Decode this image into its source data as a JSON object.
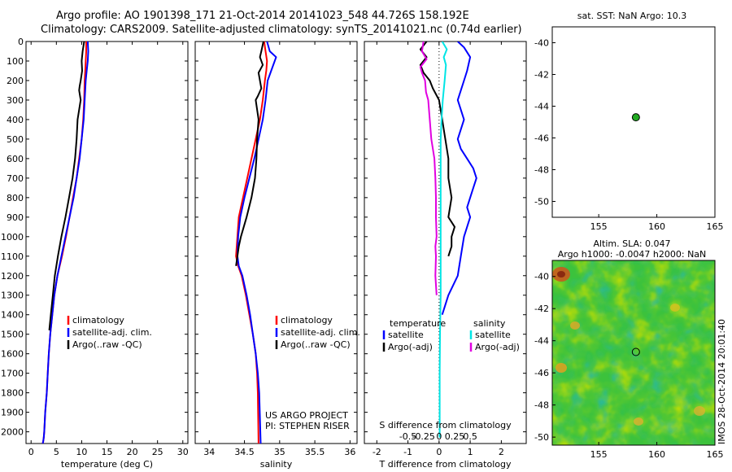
{
  "header": {
    "line1": "Argo profile: AO 1901398_171 21-Oct-2014 20141023_548 44.726S 158.192E",
    "line2": "Climatology: CARS2009. Satellite-adjusted climatology: synTS_20141021.nc (0.74d earlier)"
  },
  "credit": "IMOS 28-Oct-2014 20:01:40",
  "project_note": [
    "US ARGO PROJECT",
    "PI: STEPHEN RISER"
  ],
  "colors": {
    "climatology": "#ff0000",
    "satellite": "#0000ff",
    "argo": "#000000",
    "sat_salinity": "#00e5e5",
    "argo_salinity": "#e100e1",
    "dot": "#22aa22"
  },
  "chart_data": [
    {
      "type": "line",
      "xlabel": "temperature (deg C)",
      "xlim": [
        -1,
        31
      ],
      "xticks": [
        0,
        5,
        10,
        15,
        20,
        25,
        30
      ],
      "ylim": [
        2060,
        0
      ],
      "yticks": [
        0,
        100,
        200,
        300,
        400,
        500,
        600,
        700,
        800,
        900,
        1000,
        1100,
        1200,
        1300,
        1400,
        1500,
        1600,
        1700,
        1800,
        1900,
        2000
      ],
      "legend": [
        "climatology",
        "satellite-adj. clim.",
        "Argo(..raw -QC)"
      ],
      "series": [
        {
          "name": "climatology",
          "color": "#ff0000",
          "x": [
            10.9,
            10.9,
            10.8,
            10.7,
            10.6,
            10.5,
            10.3,
            10.0,
            9.5,
            9.0,
            8.3,
            7.6,
            6.9,
            6.1,
            5.2,
            4.6,
            4.2,
            3.8,
            3.5,
            3.3,
            3.1,
            2.8,
            2.6,
            2.5,
            2.4,
            2.3
          ],
          "y": [
            0,
            50,
            100,
            150,
            200,
            300,
            400,
            500,
            600,
            700,
            800,
            900,
            1000,
            1100,
            1200,
            1300,
            1400,
            1500,
            1600,
            1700,
            1800,
            1900,
            2000,
            2030,
            2050,
            2060
          ]
        },
        {
          "name": "satellite-adj. clim.",
          "color": "#0000ff",
          "x": [
            11.2,
            11.3,
            11.2,
            11.0,
            10.8,
            10.6,
            10.4,
            10.0,
            9.6,
            9.0,
            8.4,
            7.6,
            6.8,
            6.0,
            5.2,
            4.6,
            4.2,
            3.8,
            3.5,
            3.3,
            3.1,
            2.8,
            2.6,
            2.5,
            2.4,
            2.3
          ],
          "y": [
            0,
            50,
            100,
            150,
            200,
            300,
            400,
            500,
            600,
            700,
            800,
            900,
            1000,
            1100,
            1200,
            1300,
            1400,
            1500,
            1600,
            1700,
            1800,
            1900,
            2000,
            2030,
            2050,
            2060
          ]
        },
        {
          "name": "Argo(..raw -QC)",
          "color": "#000000",
          "x": [
            10.5,
            10.2,
            10.0,
            10.1,
            9.8,
            9.6,
            9.5,
            9.8,
            9.2,
            9.0,
            8.7,
            8.2,
            7.5,
            6.8,
            6.0,
            5.3,
            4.7,
            4.3,
            3.9,
            3.6
          ],
          "y": [
            0,
            50,
            100,
            150,
            200,
            230,
            250,
            300,
            400,
            500,
            600,
            700,
            800,
            900,
            1000,
            1100,
            1200,
            1300,
            1400,
            1480
          ]
        }
      ]
    },
    {
      "type": "line",
      "xlabel": "salinity",
      "xlim": [
        33.8,
        36.1
      ],
      "xticks": [
        34,
        34.5,
        35,
        35.5,
        36
      ],
      "ylim": [
        2060,
        0
      ],
      "yticks": [
        0,
        100,
        200,
        300,
        400,
        500,
        600,
        700,
        800,
        900,
        1000,
        1100,
        1200,
        1300,
        1400,
        1500,
        1600,
        1700,
        1800,
        1900,
        2000
      ],
      "legend": [
        "climatology",
        "satellite-adj. clim.",
        "Argo(..raw -QC)"
      ],
      "series": [
        {
          "name": "climatology",
          "color": "#ff0000",
          "x": [
            34.78,
            34.8,
            34.82,
            34.81,
            34.79,
            34.76,
            34.72,
            34.66,
            34.6,
            34.54,
            34.48,
            34.42,
            34.4,
            34.38,
            34.41,
            34.46,
            34.52,
            34.57,
            34.62,
            34.66,
            34.68,
            34.69,
            34.7
          ],
          "y": [
            0,
            50,
            100,
            150,
            200,
            300,
            400,
            500,
            600,
            700,
            800,
            900,
            1000,
            1100,
            1150,
            1200,
            1300,
            1400,
            1500,
            1600,
            1700,
            1800,
            2060
          ]
        },
        {
          "name": "satellite-adj. clim.",
          "color": "#0000ff",
          "x": [
            34.82,
            34.86,
            34.95,
            34.88,
            34.83,
            34.8,
            34.76,
            34.7,
            34.64,
            34.57,
            34.5,
            34.44,
            34.41,
            34.4,
            34.42,
            34.47,
            34.53,
            34.58,
            34.62,
            34.66,
            34.69,
            34.71,
            34.73
          ],
          "y": [
            0,
            50,
            80,
            150,
            200,
            300,
            400,
            500,
            600,
            700,
            800,
            900,
            1000,
            1100,
            1150,
            1200,
            1300,
            1400,
            1500,
            1600,
            1700,
            1800,
            2060
          ]
        },
        {
          "name": "Argo(..raw -QC)",
          "color": "#000000",
          "x": [
            34.77,
            34.74,
            34.72,
            34.76,
            34.7,
            34.72,
            34.74,
            34.69,
            34.66,
            34.7,
            34.68,
            34.67,
            34.65,
            34.6,
            34.53,
            34.45,
            34.42,
            34.4,
            34.38
          ],
          "y": [
            0,
            50,
            80,
            120,
            160,
            200,
            240,
            280,
            300,
            400,
            500,
            600,
            700,
            800,
            900,
            1000,
            1050,
            1100,
            1150
          ]
        }
      ]
    },
    {
      "type": "line",
      "xlabel": "T difference from climatology",
      "x2label": "S difference from climatology",
      "xlim": [
        -2.4,
        2.8
      ],
      "xticks": [
        -2,
        -1,
        0,
        1,
        2
      ],
      "x2ticks": [
        "-0.5",
        "-0.25",
        "0",
        "0.25",
        "0.5"
      ],
      "ylim": [
        2060,
        0
      ],
      "legend_titles": [
        "temperature",
        "salinity"
      ],
      "legend": [
        "satellite",
        "Argo(-adj)",
        "satellite",
        "Argo(-adj)"
      ],
      "series": [
        {
          "name": "temperature satellite",
          "color": "#0000ff",
          "x": [
            0.6,
            0.8,
            1.0,
            0.9,
            0.8,
            0.6,
            0.8,
            0.6,
            0.7,
            0.9,
            1.1,
            1.2,
            1.1,
            1.0,
            0.9,
            1.0,
            0.9,
            0.8,
            0.7,
            0.6,
            0.3,
            0.1
          ],
          "y": [
            0,
            30,
            80,
            150,
            200,
            300,
            400,
            500,
            550,
            600,
            650,
            700,
            750,
            800,
            850,
            900,
            950,
            1000,
            1100,
            1200,
            1300,
            1400
          ]
        },
        {
          "name": "temperature Argo(-adj)",
          "color": "#000000",
          "x": [
            -0.4,
            -0.6,
            -0.4,
            -0.6,
            -0.5,
            -0.3,
            -0.2,
            0.0,
            0.1,
            0.2,
            0.3,
            0.3,
            0.4,
            0.3,
            0.5,
            0.4,
            0.4,
            0.3
          ],
          "y": [
            0,
            40,
            80,
            120,
            160,
            200,
            240,
            300,
            400,
            500,
            600,
            700,
            800,
            900,
            950,
            1000,
            1050,
            1100
          ]
        },
        {
          "name": "salinity satellite",
          "color": "#00e5e5",
          "x": [
            0.1,
            0.25,
            0.15,
            0.22,
            0.18,
            0.12,
            0.08,
            0.05,
            0.05,
            0.05,
            0.05,
            0.05,
            0.03,
            0.02,
            0.02
          ],
          "y": [
            0,
            40,
            80,
            120,
            200,
            300,
            400,
            500,
            700,
            900,
            1100,
            1300,
            1500,
            1700,
            2030
          ]
        },
        {
          "name": "salinity Argo(-adj)",
          "color": "#e100e1",
          "x": [
            -0.5,
            -0.55,
            -0.4,
            -0.6,
            -0.55,
            -0.45,
            -0.42,
            -0.35,
            -0.3,
            -0.25,
            -0.15,
            -0.12,
            -0.1,
            -0.1,
            -0.08,
            -0.12,
            -0.1,
            -0.12,
            -0.08
          ],
          "y": [
            0,
            50,
            90,
            130,
            160,
            200,
            260,
            300,
            400,
            500,
            600,
            700,
            800,
            900,
            1000,
            1050,
            1100,
            1200,
            1300
          ]
        }
      ]
    },
    {
      "type": "scatter",
      "title": "sat. SST: NaN Argo: 10.3",
      "xlim": [
        151,
        165
      ],
      "ylim": [
        -51,
        -39
      ],
      "xticks": [
        155,
        160,
        165
      ],
      "yticks": [
        -40,
        -42,
        -44,
        -46,
        -48,
        -50
      ],
      "points": [
        {
          "x": 158.2,
          "y": -44.7
        }
      ]
    },
    {
      "type": "heatmap",
      "title": "Altim. SLA: 0.047",
      "subtitle": "Argo h1000: -0.0047 h2000: NaN",
      "xlim": [
        151,
        165
      ],
      "ylim": [
        -50.5,
        -39
      ],
      "xticks": [
        155,
        160,
        165
      ],
      "yticks": [
        -40,
        -42,
        -44,
        -46,
        -48,
        -50
      ],
      "points": [
        {
          "x": 158.2,
          "y": -44.7
        }
      ]
    }
  ]
}
